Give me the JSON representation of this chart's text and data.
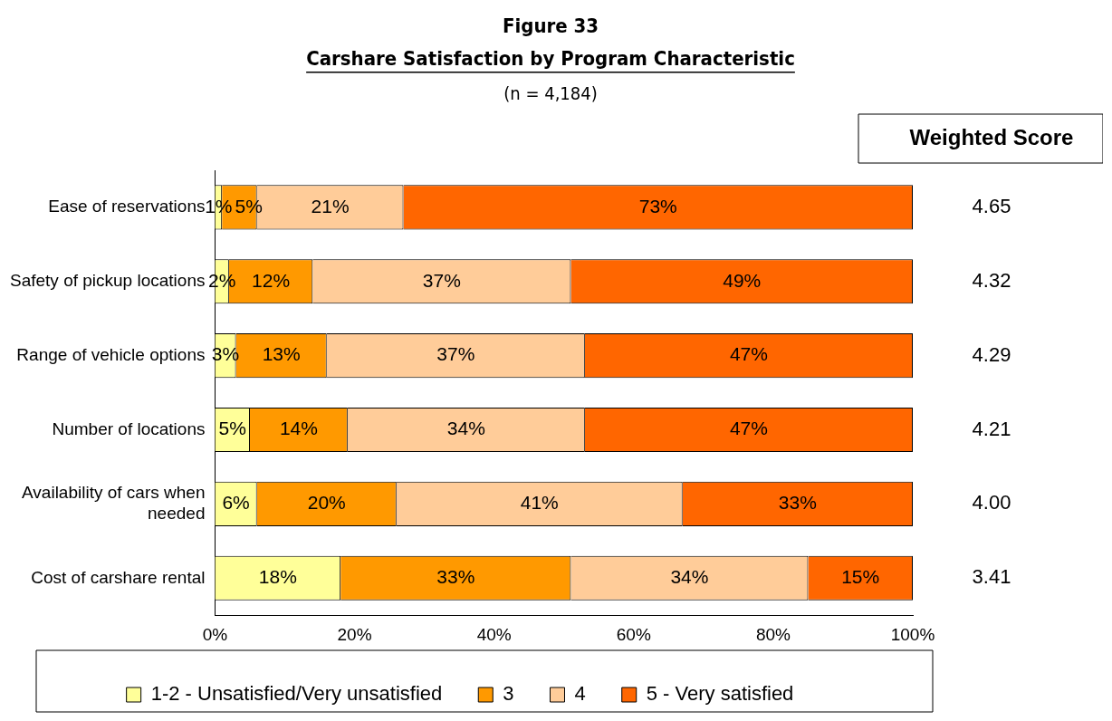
{
  "chart_data": {
    "type": "bar",
    "orientation": "horizontal",
    "stacked": true,
    "title": "Figure 33",
    "subtitle": "Carshare Satisfaction by Program Characteristic",
    "categories": [
      "Ease of reservations",
      "Safety of pickup locations",
      "Range of vehicle options",
      "Number of locations",
      "Availability of cars when needed",
      "Cost of carshare rental"
    ],
    "series": [
      {
        "name": "1-2 - Unsatisfied/Very unsatisfied",
        "color": "#ffff99",
        "values": [
          1,
          2,
          3,
          5,
          6,
          18
        ],
        "value_labels": [
          "1%",
          "2%",
          "3%",
          "5%",
          "6%",
          "18%"
        ]
      },
      {
        "name": "3",
        "color": "#ff9900",
        "values": [
          5,
          12,
          13,
          14,
          20,
          33
        ],
        "value_labels": [
          "5%",
          "12%",
          "13%",
          "14%",
          "20%",
          "33%"
        ]
      },
      {
        "name": "4",
        "color": "#ffcc99",
        "values": [
          21,
          37,
          37,
          34,
          41,
          34
        ],
        "value_labels": [
          "21%",
          "37%",
          "37%",
          "34%",
          "41%",
          "34%"
        ]
      },
      {
        "name": "5 - Very satisfied",
        "color": "#ff6600",
        "values": [
          73,
          49,
          47,
          47,
          33,
          15
        ],
        "value_labels": [
          "73%",
          "49%",
          "47%",
          "47%",
          "33%",
          "15%"
        ]
      }
    ],
    "xlim": [
      0,
      100
    ],
    "xticks": [
      {
        "value": 0,
        "label": "0%"
      },
      {
        "value": 20,
        "label": "20%"
      },
      {
        "value": 40,
        "label": "40%"
      },
      {
        "value": 60,
        "label": "60%"
      },
      {
        "value": 80,
        "label": "80%"
      },
      {
        "value": 100,
        "label": "100%"
      }
    ],
    "grid": false,
    "legend": "bottom",
    "annotations": [
      "(n = 4,184)",
      "Weighted Score",
      "4.65",
      "4.32",
      "4.29",
      "4.21",
      "4.00",
      "3.41"
    ]
  }
}
